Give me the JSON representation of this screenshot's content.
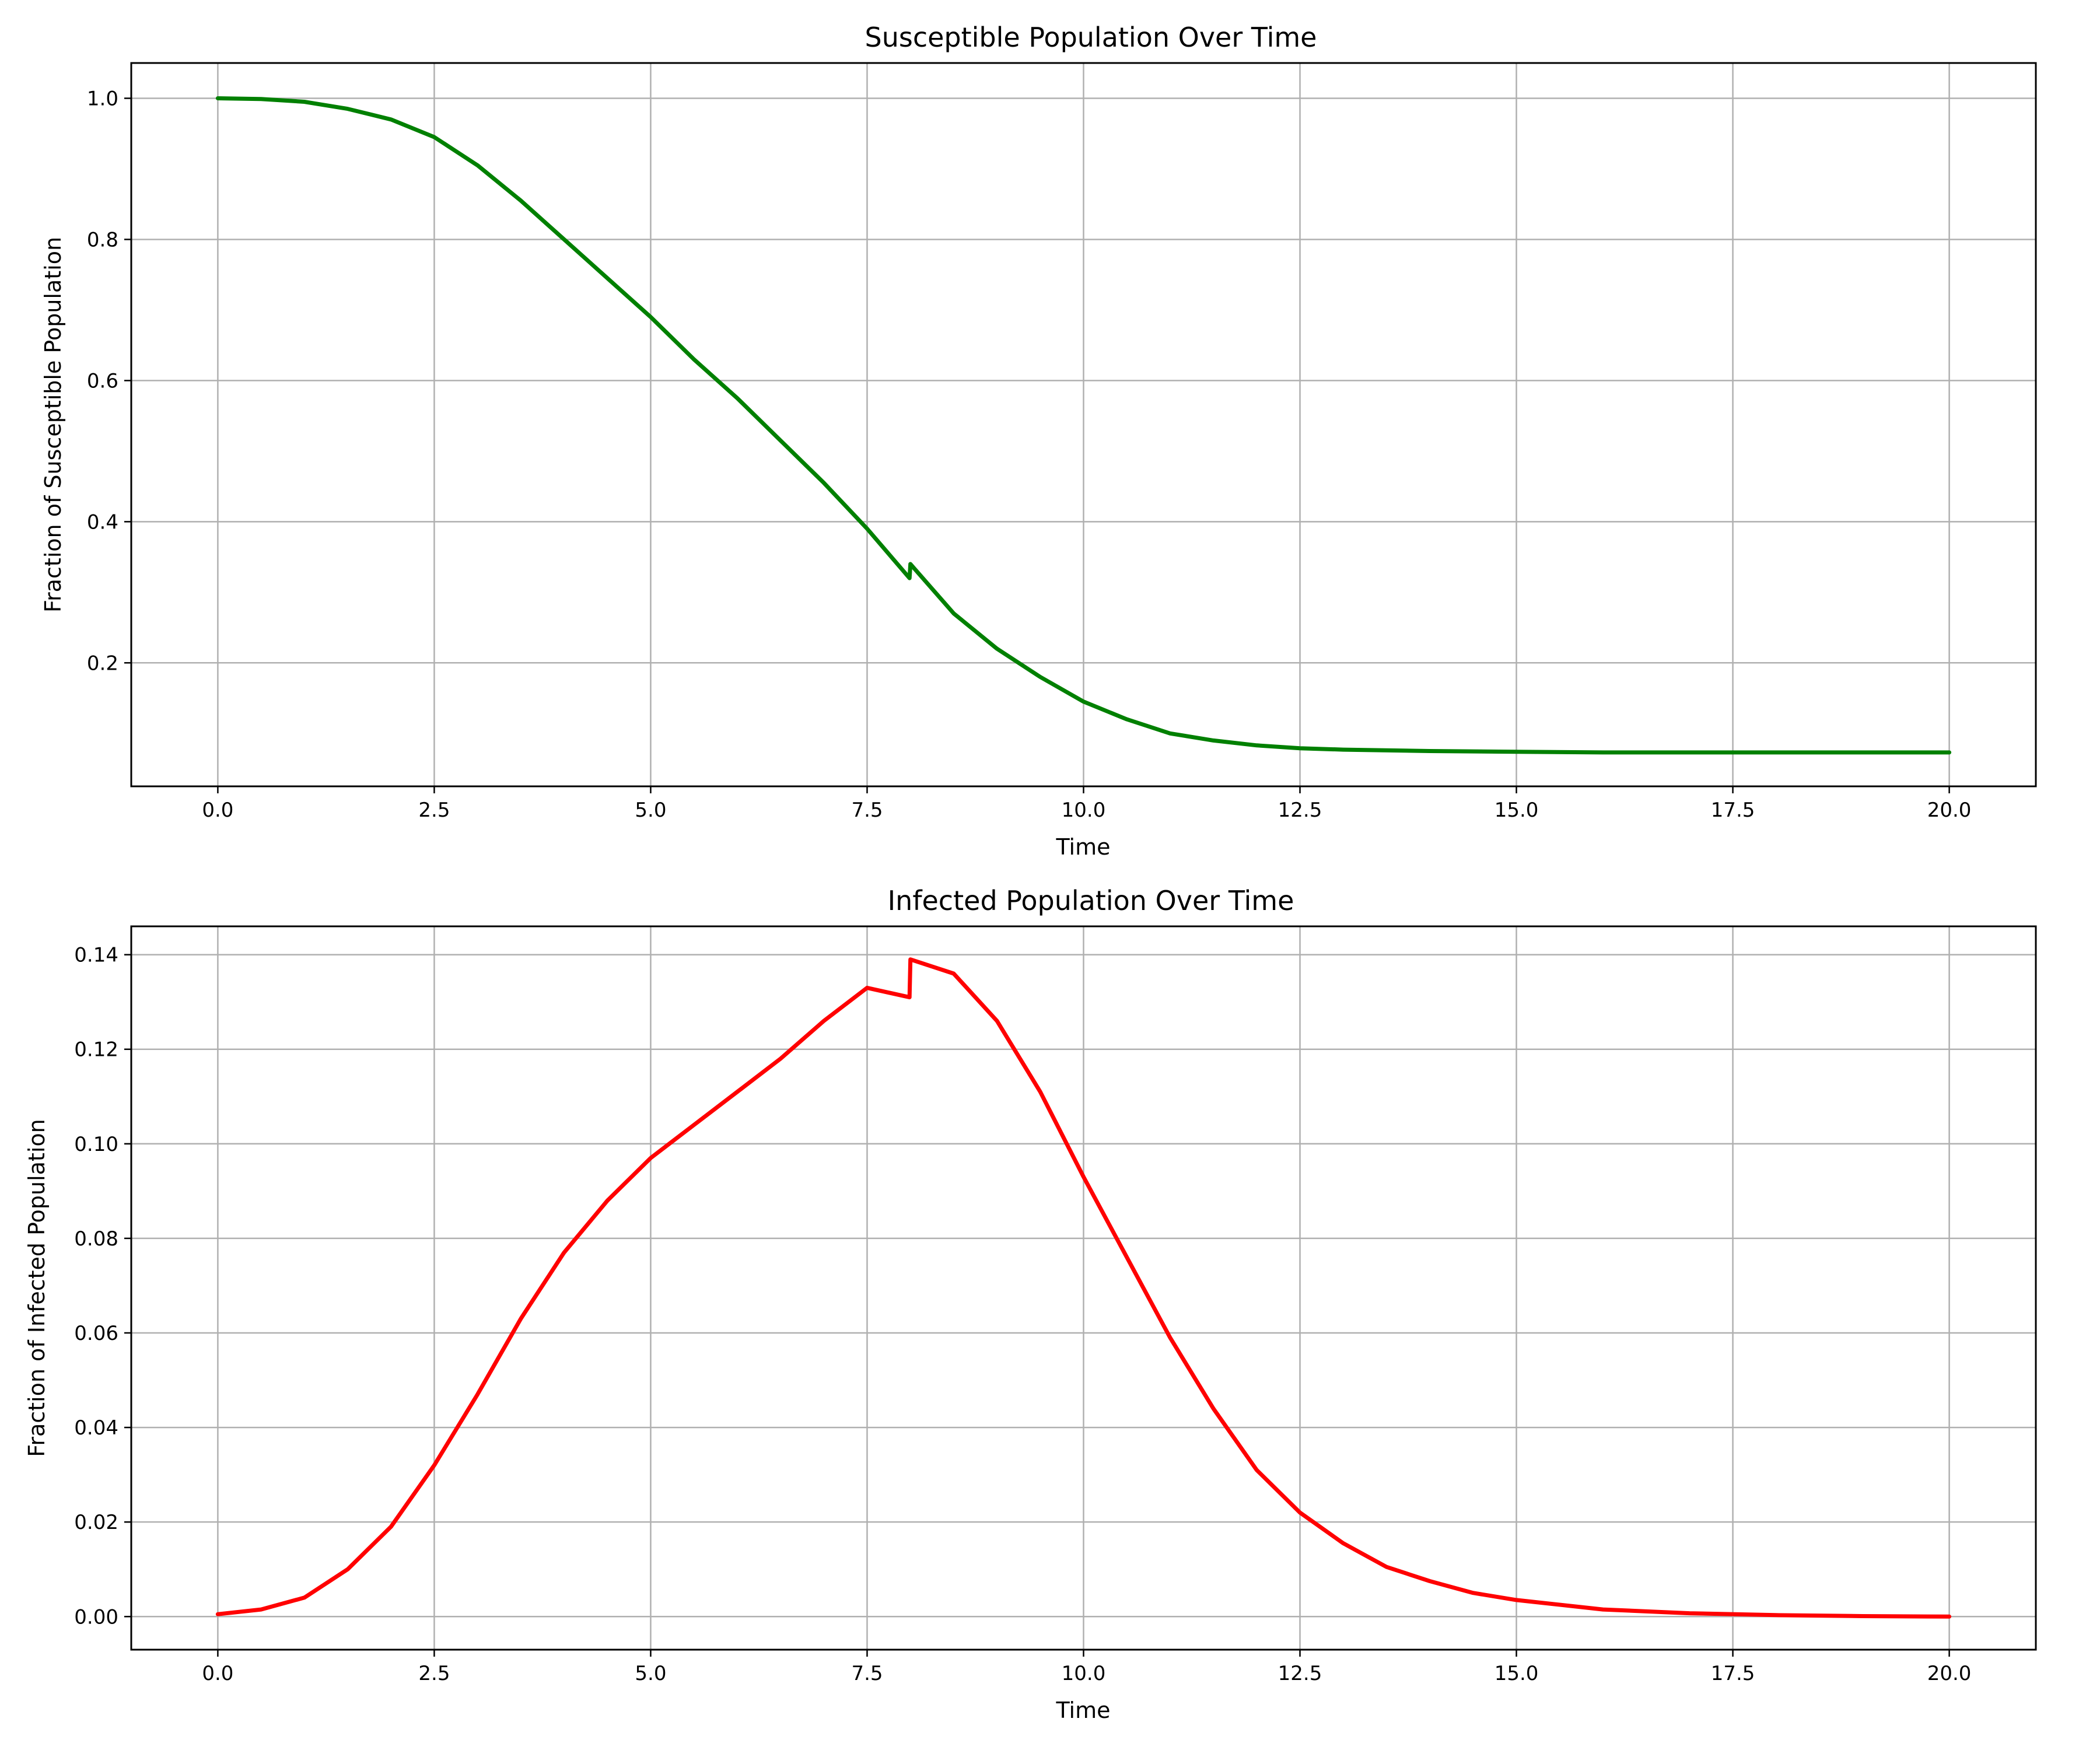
{
  "chart_data": [
    {
      "type": "line",
      "title": "Susceptible Population Over Time",
      "xlabel": "Time",
      "ylabel": "Fraction of Susceptible Population",
      "xlim": [
        -1.0,
        21.0
      ],
      "ylim": [
        0.025,
        1.05
      ],
      "xticks": [
        0.0,
        2.5,
        5.0,
        7.5,
        10.0,
        12.5,
        15.0,
        17.5,
        20.0
      ],
      "xtick_labels": [
        "0.0",
        "2.5",
        "5.0",
        "7.5",
        "10.0",
        "12.5",
        "15.0",
        "17.5",
        "20.0"
      ],
      "yticks": [
        0.2,
        0.4,
        0.6,
        0.8,
        1.0
      ],
      "ytick_labels": [
        "0.2",
        "0.4",
        "0.6",
        "0.8",
        "1.0"
      ],
      "grid": true,
      "series": [
        {
          "color": "#008000",
          "x": [
            0,
            0.5,
            1.0,
            1.5,
            2.0,
            2.5,
            3.0,
            3.5,
            4.0,
            4.5,
            5.0,
            5.5,
            6.0,
            6.5,
            7.0,
            7.5,
            7.99,
            8.0,
            8.5,
            9.0,
            9.5,
            10.0,
            10.5,
            11.0,
            11.5,
            12.0,
            12.5,
            13.0,
            14.0,
            15.0,
            16.0,
            17.0,
            18.0,
            19.0,
            20.0
          ],
          "y": [
            1.0,
            0.999,
            0.995,
            0.985,
            0.97,
            0.945,
            0.905,
            0.855,
            0.8,
            0.745,
            0.69,
            0.63,
            0.575,
            0.515,
            0.455,
            0.39,
            0.32,
            0.34,
            0.27,
            0.22,
            0.18,
            0.145,
            0.12,
            0.1,
            0.09,
            0.083,
            0.079,
            0.077,
            0.075,
            0.074,
            0.073,
            0.073,
            0.073,
            0.073,
            0.073
          ]
        }
      ]
    },
    {
      "type": "line",
      "title": "Infected Population Over Time",
      "xlabel": "Time",
      "ylabel": "Fraction of Infected Population",
      "xlim": [
        -1.0,
        21.0
      ],
      "ylim": [
        -0.007,
        0.146
      ],
      "xticks": [
        0.0,
        2.5,
        5.0,
        7.5,
        10.0,
        12.5,
        15.0,
        17.5,
        20.0
      ],
      "xtick_labels": [
        "0.0",
        "2.5",
        "5.0",
        "7.5",
        "10.0",
        "12.5",
        "15.0",
        "17.5",
        "20.0"
      ],
      "yticks": [
        0.0,
        0.02,
        0.04,
        0.06,
        0.08,
        0.1,
        0.12,
        0.14
      ],
      "ytick_labels": [
        "0.00",
        "0.02",
        "0.04",
        "0.06",
        "0.08",
        "0.10",
        "0.12",
        "0.14"
      ],
      "grid": true,
      "series": [
        {
          "color": "#ff0000",
          "x": [
            0,
            0.5,
            1.0,
            1.5,
            2.0,
            2.5,
            3.0,
            3.5,
            4.0,
            4.5,
            5.0,
            5.5,
            6.0,
            6.5,
            7.0,
            7.5,
            7.99,
            8.0,
            8.5,
            9.0,
            9.5,
            10.0,
            10.5,
            11.0,
            11.5,
            12.0,
            12.5,
            13.0,
            13.5,
            14.0,
            14.5,
            15.0,
            16.0,
            17.0,
            18.0,
            19.0,
            20.0
          ],
          "y": [
            0.0005,
            0.0015,
            0.004,
            0.01,
            0.019,
            0.032,
            0.047,
            0.063,
            0.077,
            0.088,
            0.097,
            0.104,
            0.111,
            0.118,
            0.126,
            0.133,
            0.131,
            0.139,
            0.136,
            0.126,
            0.111,
            0.093,
            0.076,
            0.059,
            0.044,
            0.031,
            0.022,
            0.0155,
            0.0105,
            0.0075,
            0.005,
            0.0035,
            0.0015,
            0.0007,
            0.0003,
            0.0001,
            0.0
          ]
        }
      ]
    }
  ]
}
